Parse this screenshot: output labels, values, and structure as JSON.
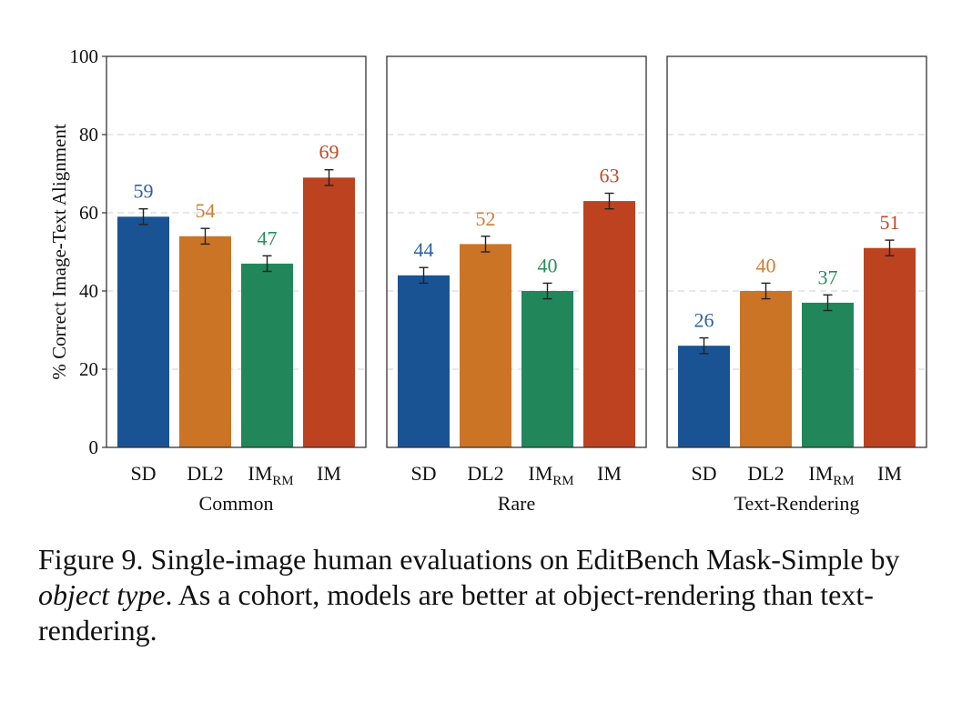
{
  "chart_data": {
    "type": "bar",
    "ylabel": "% Correct Image-Text Alignment",
    "ylim": [
      0,
      100
    ],
    "yticks": [
      0,
      20,
      40,
      60,
      80,
      100
    ],
    "grid": "dashed horizontal",
    "categories": [
      {
        "label": "SD",
        "sub": ""
      },
      {
        "label": "DL2",
        "sub": ""
      },
      {
        "label": "IM",
        "sub": "RM"
      },
      {
        "label": "IM",
        "sub": ""
      }
    ],
    "colors": [
      "#1a5394",
      "#cc7426",
      "#21875a",
      "#bd4220"
    ],
    "label_colors": [
      "#2d62a3",
      "#cf7d32",
      "#2a8c5f",
      "#c04a26"
    ],
    "groups": [
      {
        "name": "Common",
        "values": [
          59,
          54,
          47,
          69
        ],
        "errors": [
          2,
          2,
          2,
          2
        ]
      },
      {
        "name": "Rare",
        "values": [
          44,
          52,
          40,
          63
        ],
        "errors": [
          2,
          2,
          2,
          2
        ]
      },
      {
        "name": "Text-Rendering",
        "values": [
          26,
          40,
          37,
          51
        ],
        "errors": [
          2,
          2,
          2,
          2
        ]
      }
    ]
  },
  "caption": {
    "prefix": "Figure 9.  Single-image human evaluations on EditBench Mask-Simple by ",
    "emphasis": "object type",
    "suffix": ".  As a cohort, models are better at object-rendering than text-rendering."
  }
}
